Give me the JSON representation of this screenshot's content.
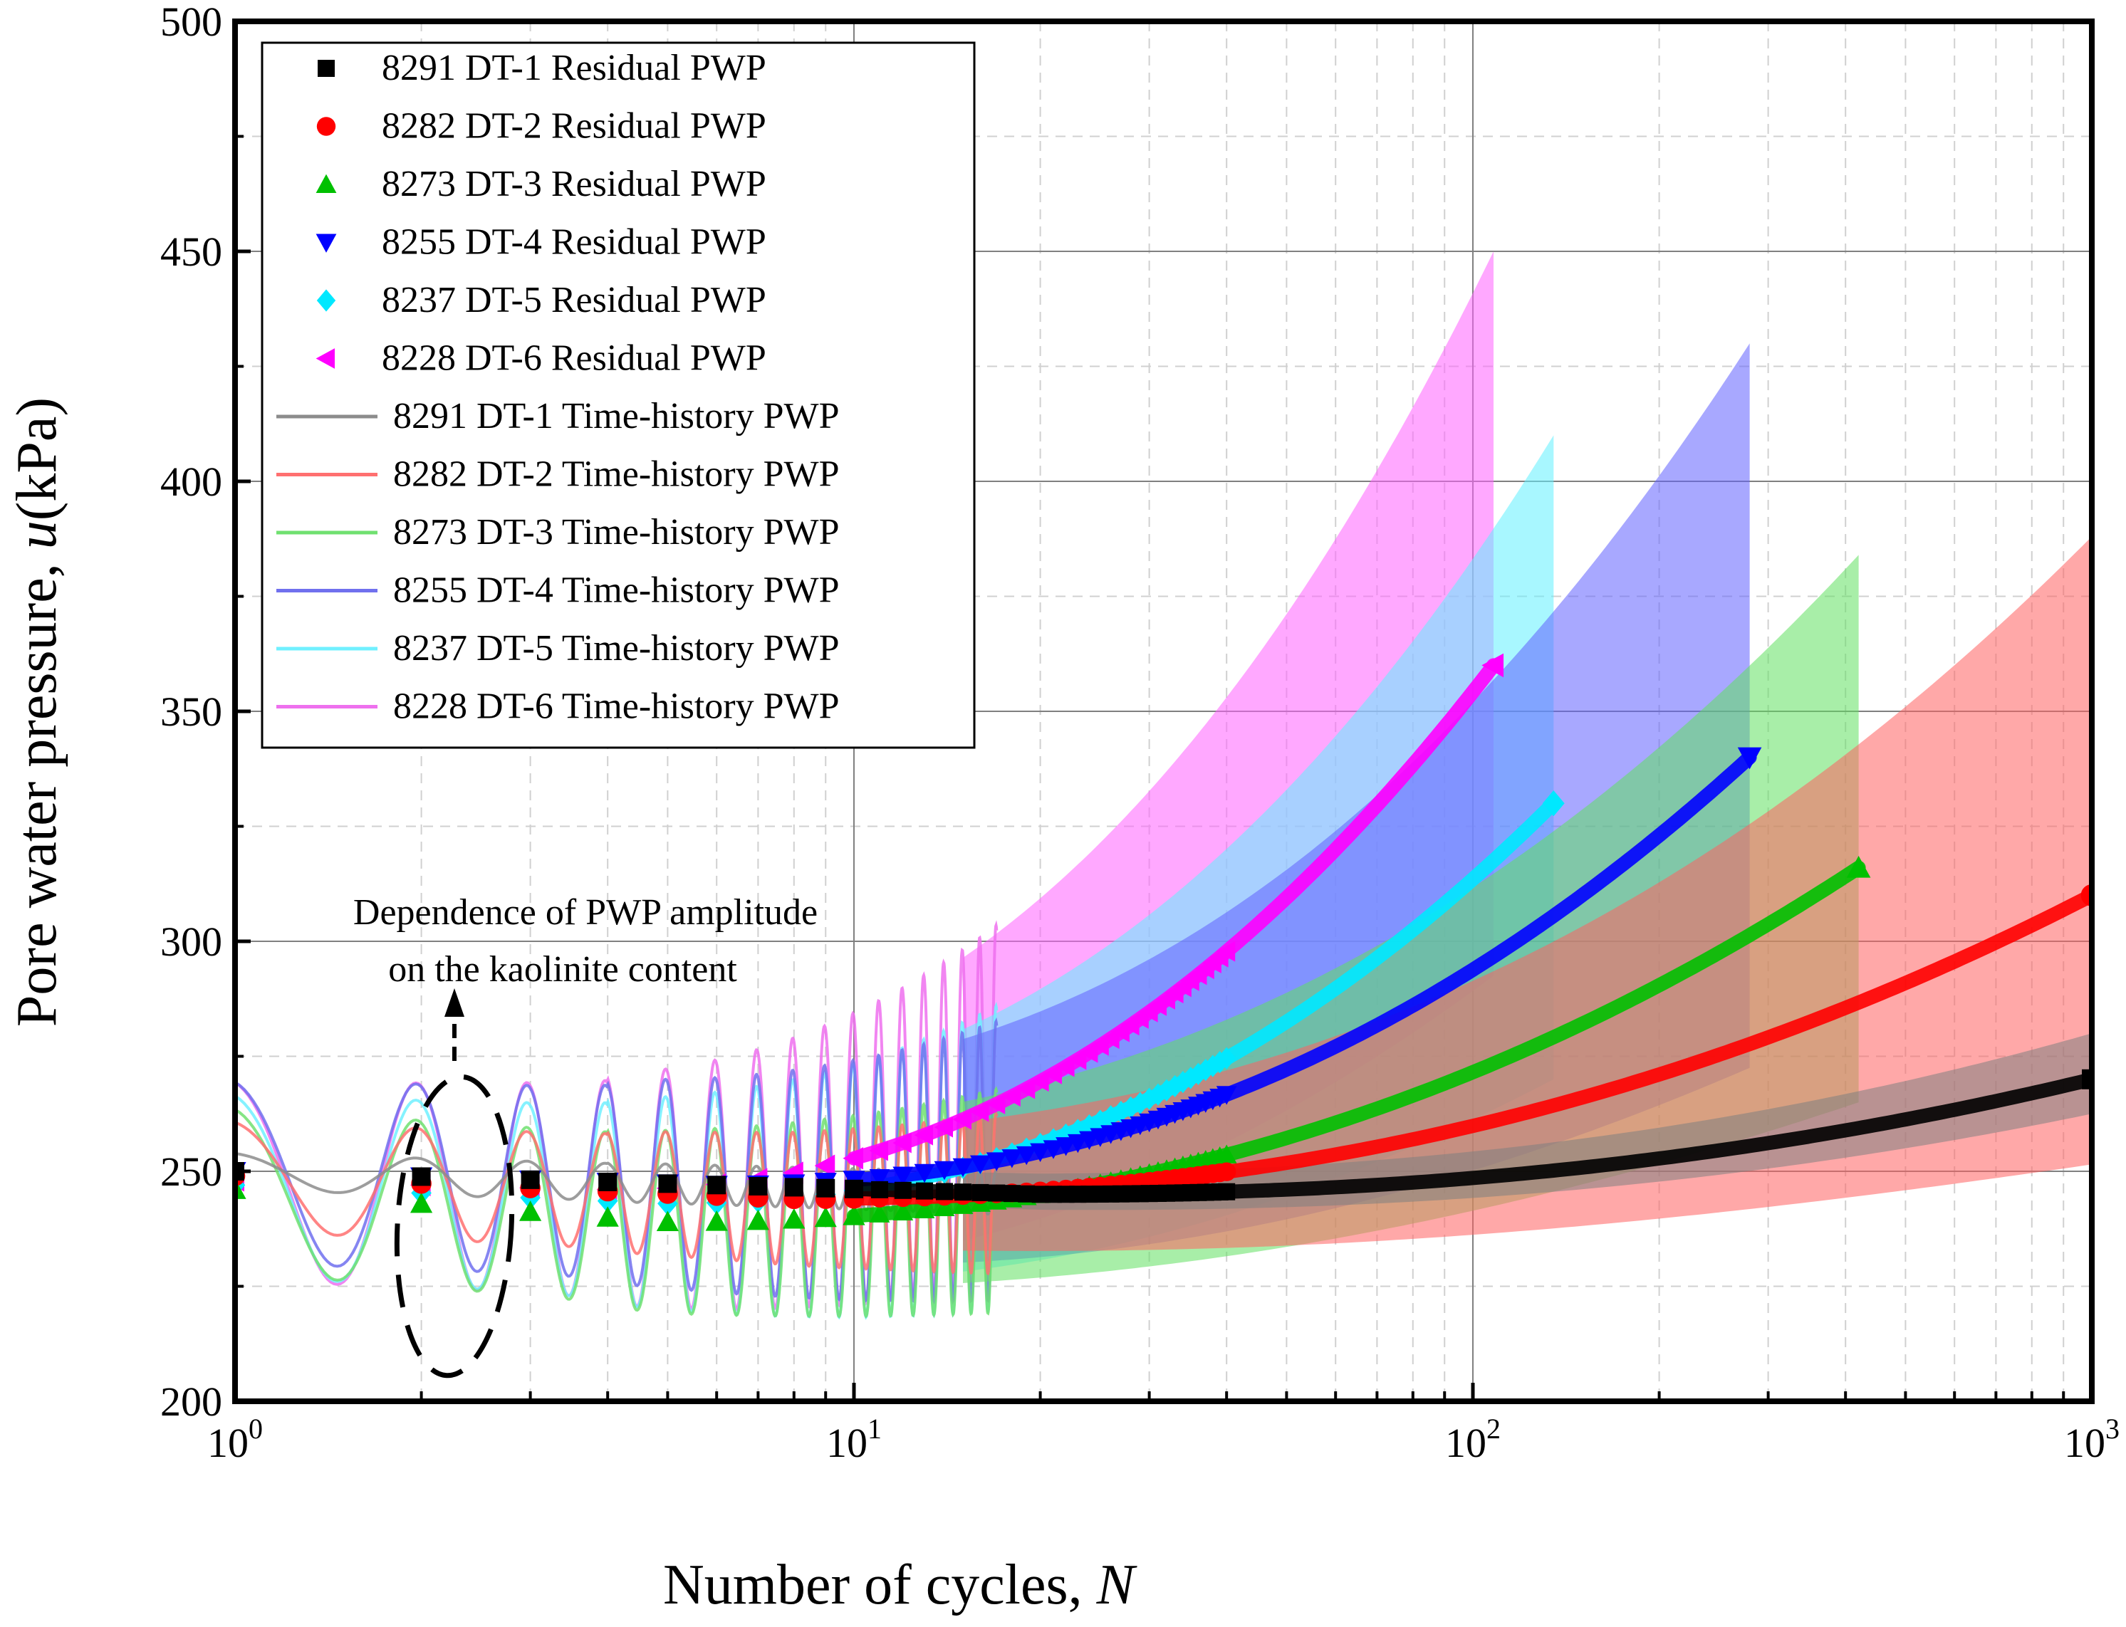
{
  "chart_data": {
    "type": "scatter",
    "x_scale": "log",
    "xlim": [
      1,
      1000
    ],
    "ylim": [
      200,
      500
    ],
    "xlabel": "Number of cycles, ",
    "xlabel_var": "N",
    "ylabel": "Pore water pressure, ",
    "ylabel_var": "u",
    "ylabel_unit": "(kPa)",
    "grid": true,
    "x_ticks": [
      {
        "value": 1,
        "base": "10",
        "exp": "0"
      },
      {
        "value": 10,
        "base": "10",
        "exp": "1"
      },
      {
        "value": 100,
        "base": "10",
        "exp": "2"
      },
      {
        "value": 1000,
        "base": "10",
        "exp": "3"
      }
    ],
    "y_ticks": [
      {
        "value": 200,
        "label": "200"
      },
      {
        "value": 250,
        "label": "250"
      },
      {
        "value": 300,
        "label": "300"
      },
      {
        "value": 350,
        "label": "350"
      },
      {
        "value": 400,
        "label": "400"
      },
      {
        "value": 450,
        "label": "450"
      },
      {
        "value": 500,
        "label": "500"
      }
    ],
    "legend_position": "top-left",
    "annotation": {
      "line1": "Dependence of PWP amplitude",
      "line2": "on the kaolinite content"
    },
    "series": [
      {
        "id": "dt1",
        "residual_name": "8291 DT-1 Residual PWP",
        "history_name": "8291 DT-1 Time-history PWP",
        "marker": "square",
        "color": "#000000",
        "fill_color": "#7f7f7f",
        "hist_color": "#8c8c8c",
        "n_end": 1000,
        "u_start": 250,
        "u_min": 245,
        "n_min": 20,
        "u_end": 270,
        "amp_start": 4,
        "amp_end": 10,
        "amp_peak": 10
      },
      {
        "id": "dt2",
        "residual_name": "8282 DT-2 Residual PWP",
        "history_name": "8282 DT-2 Time-history PWP",
        "marker": "circle",
        "color": "#ff0000",
        "fill_color": "#ff6060",
        "hist_color": "#ff7070",
        "n_end": 1000,
        "u_start": 249,
        "u_min": 244,
        "n_min": 8,
        "u_end": 310,
        "amp_start": 12,
        "amp_end": 60,
        "amp_peak": 78
      },
      {
        "id": "dt3",
        "residual_name": "8273 DT-3 Residual PWP",
        "history_name": "8273 DT-3 Time-history PWP",
        "marker": "triangle-up",
        "color": "#00c000",
        "fill_color": "#60e060",
        "hist_color": "#70e070",
        "n_end": 420,
        "u_start": 246,
        "u_min": 239,
        "n_min": 5,
        "u_end": 316,
        "amp_start": 18,
        "amp_end": 40,
        "amp_peak": 68
      },
      {
        "id": "dt4",
        "residual_name": "8255 DT-4 Residual PWP",
        "history_name": "8255 DT-4 Time-history PWP",
        "marker": "triangle-down",
        "color": "#0000ff",
        "fill_color": "#6060ff",
        "hist_color": "#7070ee",
        "n_end": 280,
        "u_start": 250,
        "u_min": 247,
        "n_min": 6,
        "u_end": 340,
        "amp_start": 20,
        "amp_end": 48,
        "amp_peak": 90
      },
      {
        "id": "dt5",
        "residual_name": "8237 DT-5 Residual PWP",
        "history_name": "8237 DT-5 Time-history PWP",
        "marker": "diamond",
        "color": "#00e8ff",
        "fill_color": "#60f0ff",
        "hist_color": "#70f0ff",
        "n_end": 135,
        "u_start": 247,
        "u_min": 243,
        "n_min": 5,
        "u_end": 330,
        "amp_start": 20,
        "amp_end": 44,
        "amp_peak": 80
      },
      {
        "id": "dt6",
        "residual_name": "8228 DT-6 Residual PWP",
        "history_name": "8228 DT-6 Time-history PWP",
        "marker": "triangle-left",
        "color": "#ff00ff",
        "fill_color": "#ff60ff",
        "hist_color": "#ee70ee",
        "n_end": 108,
        "u_start": 248,
        "u_min": 246,
        "n_min": 4,
        "u_end": 360,
        "amp_start": 22,
        "amp_end": 52,
        "amp_peak": 90
      }
    ]
  }
}
